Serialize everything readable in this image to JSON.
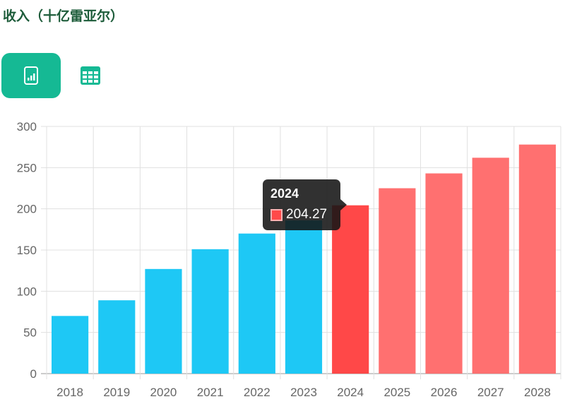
{
  "title": "收入（十亿雷亚尔）",
  "view_buttons": {
    "chart": "chart-icon",
    "table": "table-icon",
    "active": "chart"
  },
  "colors": {
    "accent": "#15b994",
    "historical": "#1ec8f5",
    "highlighted": "#ff4848",
    "forecast": "#ff7070"
  },
  "chart_data": {
    "type": "bar",
    "categories": [
      "2018",
      "2019",
      "2020",
      "2021",
      "2022",
      "2023",
      "2024",
      "2025",
      "2026",
      "2027",
      "2028"
    ],
    "values": [
      70,
      89,
      127,
      151,
      170,
      186,
      204.27,
      225,
      243,
      262,
      278
    ],
    "yticks": [
      "0",
      "50",
      "100",
      "150",
      "200",
      "250",
      "300"
    ],
    "ylim": [
      0,
      300
    ],
    "grid": true,
    "tooltip": {
      "label": "2024",
      "value": "204.27"
    }
  }
}
